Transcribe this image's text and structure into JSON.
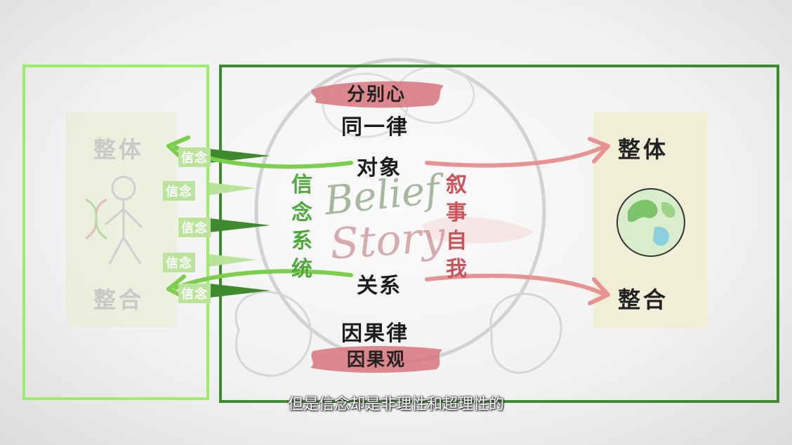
{
  "left_panel": {
    "top_label": "整体",
    "bottom_label": "整合"
  },
  "belief_tags": [
    "信念",
    "信念",
    "信念",
    "信念",
    "信念"
  ],
  "center": {
    "top_banner": "分别心",
    "top_law": "同一律",
    "object": "对象",
    "relation": "关系",
    "bottom_law": "因果律",
    "bottom_banner": "因果观",
    "left_vertical": [
      "信",
      "念",
      "系",
      "统"
    ],
    "right_vertical": [
      "叙",
      "事",
      "自",
      "我"
    ],
    "handwriting_top": "Belief",
    "handwriting_bottom": "Story"
  },
  "right_panel": {
    "top_label": "整体",
    "bottom_label": "整合"
  },
  "subtitle": "但是信念却是非理性和超理性的",
  "colors": {
    "light_green": "#9bec6c",
    "dark_green": "#3f8a2f",
    "arrow_green": "#7ccf4c",
    "arrow_red": "#e79393",
    "brush_red": "#d8737b"
  },
  "icons": [
    "stick-figure-icon",
    "dna-icon",
    "earth-globe-icon",
    "brain-sketch-icon"
  ]
}
